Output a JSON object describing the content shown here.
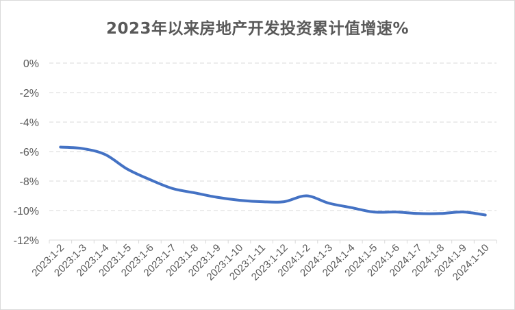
{
  "chart_data": {
    "type": "line",
    "title": "2023年以来房地产开发投资累计值增速%",
    "xlabel": "",
    "ylabel": "",
    "ylim": [
      -12,
      0
    ],
    "yticks": [
      "0%",
      "-2%",
      "-4%",
      "-6%",
      "-8%",
      "-10%",
      "-12%"
    ],
    "ytick_values": [
      0,
      -2,
      -4,
      -6,
      -8,
      -10,
      -12
    ],
    "categories": [
      "2023:1-2",
      "2023:1-3",
      "2023:1-4",
      "2023:1-5",
      "2023:1-6",
      "2023:1-7",
      "2023:1-8",
      "2023:1-9",
      "2023:1-10",
      "2023:1-11",
      "2023:1-12",
      "2024:1-2",
      "2024:1-3",
      "2024:1-4",
      "2024:1-5",
      "2024:1-6",
      "2024:1-7",
      "2024:1-8",
      "2024:1-9",
      "2024:1-10"
    ],
    "series": [
      {
        "values": [
          -5.7,
          -5.8,
          -6.2,
          -7.2,
          -7.9,
          -8.5,
          -8.8,
          -9.1,
          -9.3,
          -9.4,
          -9.4,
          -9.0,
          -9.5,
          -9.8,
          -10.1,
          -10.1,
          -10.2,
          -10.2,
          -10.1,
          -10.3
        ],
        "color": "#4472c4"
      }
    ],
    "grid": true,
    "grid_style": "dashed",
    "legend": "none"
  }
}
